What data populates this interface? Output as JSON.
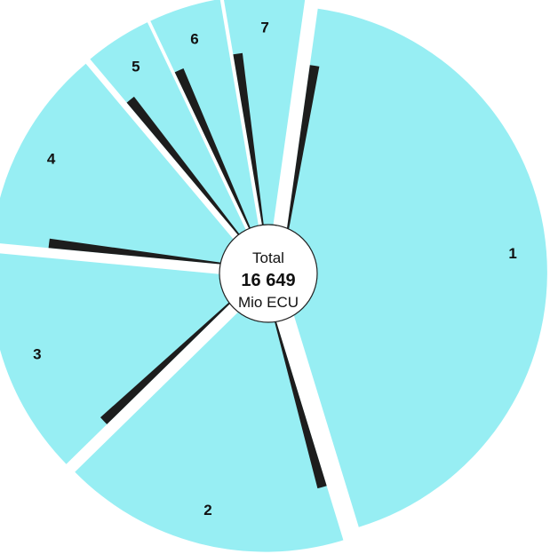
{
  "chart_data": {
    "type": "pie",
    "title": "",
    "categories": [
      "1",
      "2",
      "3",
      "4",
      "5",
      "6",
      "7"
    ],
    "values": [
      7167,
      2895,
      2304,
      2061,
      679,
      728,
      815
    ],
    "colors": {
      "slice": "#97eef3",
      "shadow": "#1d1d1d",
      "center": "#ffffff"
    },
    "center_text": {
      "label": "Total",
      "value": "16 649",
      "unit": "Mio ECU"
    }
  }
}
